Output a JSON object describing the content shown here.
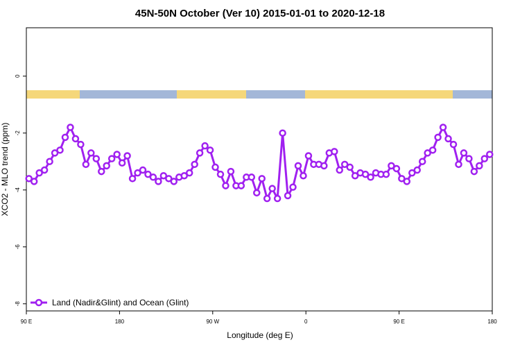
{
  "chart_data": {
    "type": "line",
    "title": "45N-50N October (Ver 10)   2015-01-01 to 2020-12-18",
    "x_label": "Longitude (deg E)",
    "y_label": "XCO2 - MLO trend (ppm)",
    "x": [
      92.5,
      97.5,
      102.5,
      107.5,
      112.5,
      117.5,
      122.5,
      127.5,
      132.5,
      137.5,
      142.5,
      147.5,
      152.5,
      157.5,
      162.5,
      167.5,
      172.5,
      177.5,
      182.5,
      187.5,
      192.5,
      197.5,
      202.5,
      207.5,
      212.5,
      217.5,
      222.5,
      227.5,
      232.5,
      237.5,
      242.5,
      247.5,
      252.5,
      257.5,
      262.5,
      267.5,
      272.5,
      277.5,
      282.5,
      287.5,
      292.5,
      297.5,
      302.5,
      307.5,
      312.5,
      317.5,
      322.5,
      327.5,
      332.5,
      337.5,
      342.5,
      347.5,
      352.5,
      357.5,
      362.5,
      367.5,
      372.5,
      377.5,
      382.5,
      387.5,
      392.5,
      397.5,
      402.5,
      407.5,
      412.5,
      417.5,
      422.5,
      427.5,
      432.5,
      437.5,
      442.5,
      447.5,
      452.5,
      457.5,
      462.5,
      467.5,
      472.5,
      477.5,
      482.5,
      487.5,
      492.5,
      497.5,
      502.5,
      507.5,
      512.5,
      517.5,
      522.5,
      527.5,
      532.5,
      537.5
    ],
    "series": [
      {
        "name": "Land (Nadir&Glint) and Ocean (Glint)",
        "color": "#a020f0",
        "values": [
          -3.6,
          -3.7,
          -3.4,
          -3.3,
          -3.0,
          -2.7,
          -2.6,
          -2.15,
          -1.8,
          -2.2,
          -2.4,
          -3.1,
          -2.7,
          -2.9,
          -3.35,
          -3.15,
          -2.9,
          -2.75,
          -3.05,
          -2.8,
          -3.6,
          -3.4,
          -3.3,
          -3.45,
          -3.55,
          -3.7,
          -3.5,
          -3.6,
          -3.7,
          -3.55,
          -3.5,
          -3.4,
          -3.1,
          -2.7,
          -2.45,
          -2.6,
          -3.2,
          -3.45,
          -3.85,
          -3.35,
          -3.85,
          -3.85,
          -3.55,
          -3.55,
          -4.1,
          -3.6,
          -4.3,
          -3.95,
          -4.3,
          -2.0,
          -4.2,
          -3.9,
          -3.15,
          -3.5,
          -2.8,
          -3.1,
          -3.1,
          -3.15,
          -2.7,
          -2.65,
          -3.3,
          -3.1,
          -3.2,
          -3.5,
          -3.4,
          -3.45,
          -3.55,
          -3.4,
          -3.45,
          -3.45,
          -3.15,
          -3.25,
          -3.6,
          -3.7,
          -3.4,
          -3.3,
          -3.0,
          -2.7,
          -2.6,
          -2.15,
          -1.8,
          -2.2,
          -2.4,
          -3.1,
          -2.7,
          -2.9,
          -3.35,
          -3.15,
          -2.9,
          -2.75
        ]
      }
    ],
    "xlim": [
      90,
      540
    ],
    "xticks": [
      {
        "value": 90,
        "label": "90 E"
      },
      180,
      {
        "value": 270,
        "label": "90 W"
      },
      {
        "value": 360,
        "label": "0"
      },
      {
        "value": 450,
        "label": "90 E"
      },
      {
        "value": 540,
        "label": "180"
      }
    ],
    "ylim": [
      -8.25,
      1.7
    ],
    "yticks": [
      0,
      -2,
      -4,
      -6,
      -8
    ],
    "legend": "bottom-left"
  }
}
